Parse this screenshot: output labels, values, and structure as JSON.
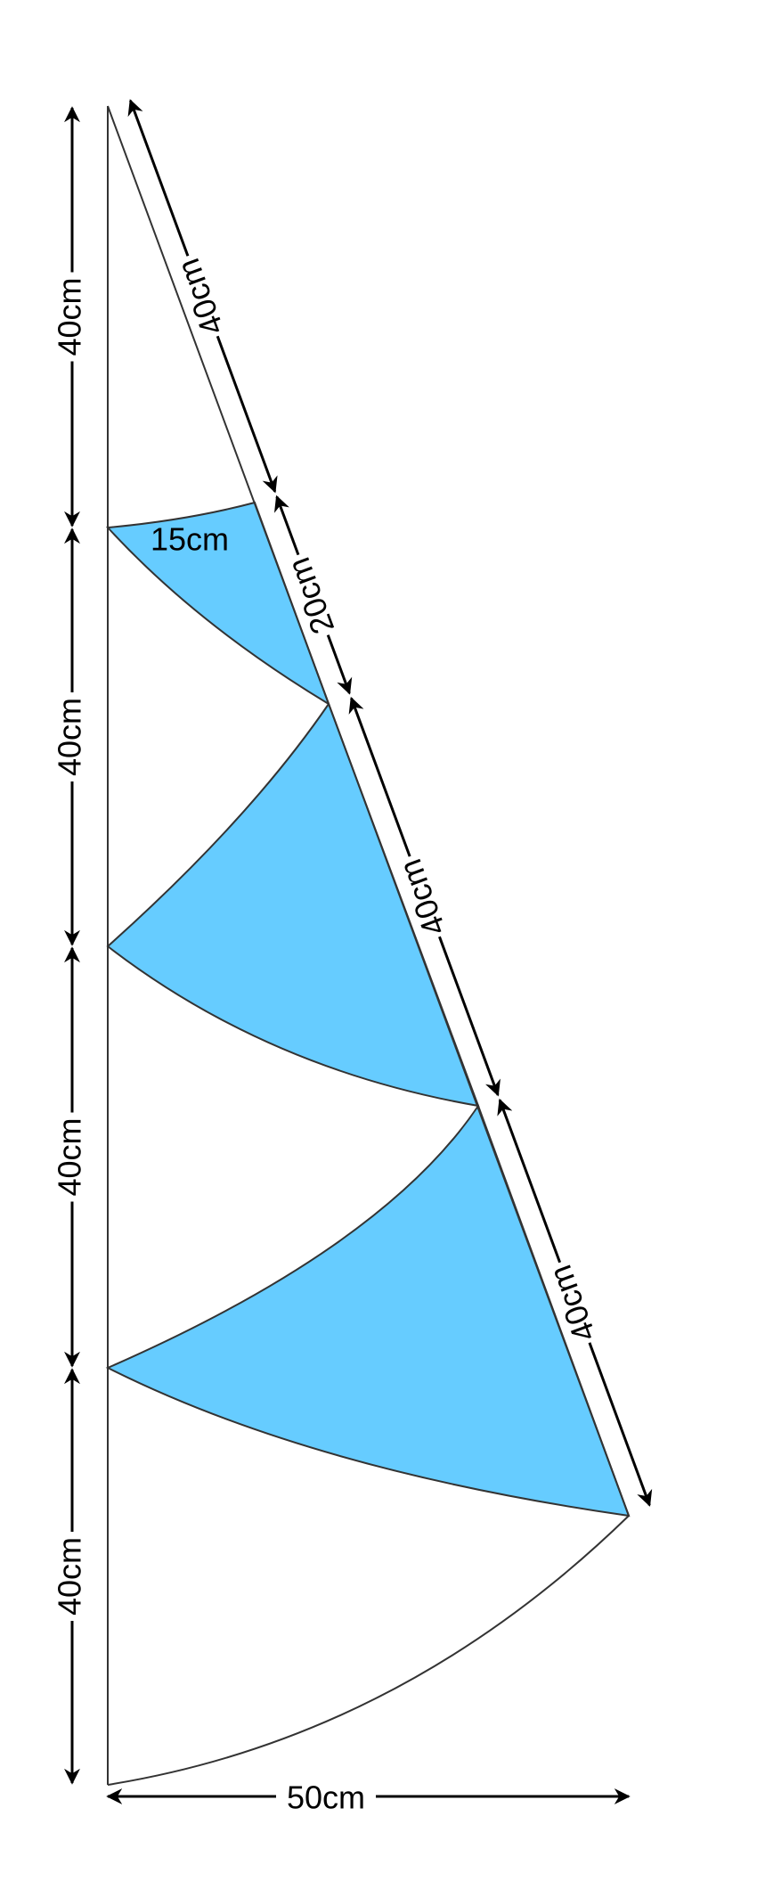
{
  "left_dimensions": [
    "40cm",
    "40cm",
    "40cm",
    "40cm"
  ],
  "diagonal_dimensions": [
    "40cm",
    "20cm",
    "40cm",
    "40cm"
  ],
  "triangle_label": "15cm",
  "width_label": "50cm"
}
